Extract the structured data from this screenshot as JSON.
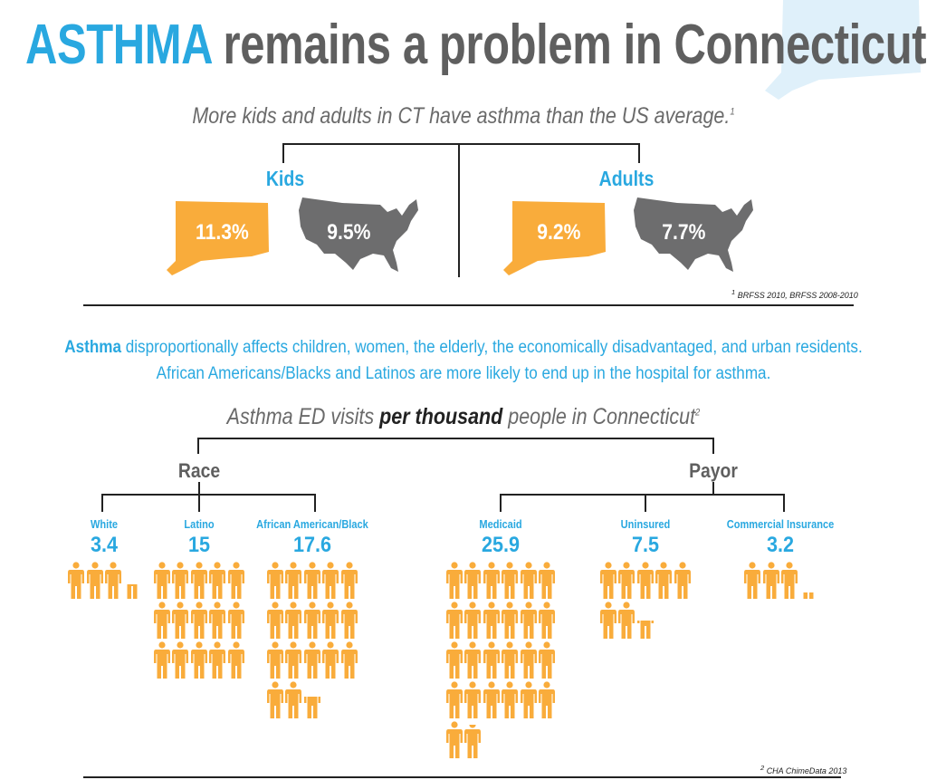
{
  "title": {
    "highlight": "ASTHMA",
    "rest": " remains a problem in Connecticut"
  },
  "colors": {
    "blue": "#29a8e0",
    "gray": "#5f5f5f",
    "orange": "#f9ac3b",
    "map_gray": "#6d6d6e",
    "ct_outline": "#dbeef9"
  },
  "prevalence": {
    "subtitle": "More kids and adults in CT have asthma than the US average.",
    "subtitle_mark": "1",
    "kids": {
      "label": "Kids",
      "ct": "11.3%",
      "us": "9.5%"
    },
    "adults": {
      "label": "Adults",
      "ct": "9.2%",
      "us": "7.7%"
    },
    "footnote_mark": "1",
    "footnote": "BRFSS 2010, BRFSS 2008-2010"
  },
  "paragraph": {
    "lead": "Asthma",
    "line1_rest": " disproportionally affects children, women, the elderly, the economically disadvantaged, and urban residents.",
    "line2": "African Americans/Blacks and Latinos are more likely to end up in the hospital for asthma."
  },
  "ed_visits": {
    "title_pre": "Asthma ED visits ",
    "title_bold": "per thousand",
    "title_post": " people in Connecticut",
    "title_mark": "2",
    "race_label": "Race",
    "payor_label": "Payor",
    "icon": "person-icon",
    "groups": [
      {
        "label": "White",
        "value": 3.4,
        "per_row": 5
      },
      {
        "label": "Latino",
        "value": 15,
        "per_row": 5
      },
      {
        "label": "African American/Black",
        "value": 17.6,
        "per_row": 5
      },
      {
        "label": "Medicaid",
        "value": 25.9,
        "per_row": 6
      },
      {
        "label": "Uninsured",
        "value": 7.5,
        "per_row": 5
      },
      {
        "label": "Commercial Insurance",
        "value": 3.2,
        "per_row": 5
      }
    ],
    "footnote_mark": "2",
    "footnote": "CHA ChimeData 2013"
  }
}
